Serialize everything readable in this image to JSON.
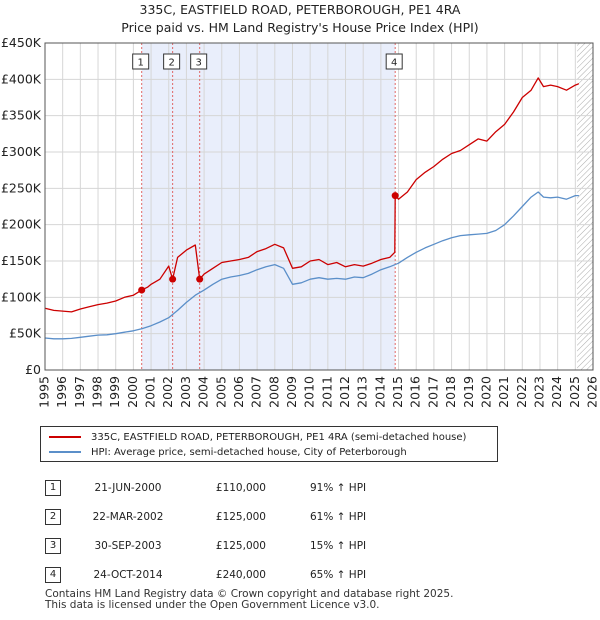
{
  "title": "335C, EASTFIELD ROAD, PETERBOROUGH, PE1 4RA",
  "subtitle": "Price paid vs. HM Land Registry's House Price Index (HPI)",
  "colors": {
    "property": "#cc0000",
    "hpi": "#5b8fc9",
    "shade": "#e9eefb",
    "marker_line": "#e06666",
    "grid": "#d6d6d6",
    "hatch": "#aaaaaa"
  },
  "chart_data": {
    "type": "line",
    "title": "335C, EASTFIELD ROAD, PETERBOROUGH, PE1 4RA",
    "subtitle": "Price paid vs. HM Land Registry's House Price Index (HPI)",
    "xlabel": "",
    "ylabel": "",
    "xlim": [
      1995,
      2026
    ],
    "ylim": [
      0,
      450000
    ],
    "grid": true,
    "x_ticks": [
      "1995",
      "1996",
      "1997",
      "1998",
      "1999",
      "2000",
      "2001",
      "2002",
      "2003",
      "2004",
      "2005",
      "2006",
      "2007",
      "2008",
      "2009",
      "2010",
      "2011",
      "2012",
      "2013",
      "2014",
      "2015",
      "2016",
      "2017",
      "2018",
      "2019",
      "2020",
      "2021",
      "2022",
      "2023",
      "2024",
      "2025",
      "2026"
    ],
    "y_ticks": [
      {
        "value": 0,
        "label": "£0"
      },
      {
        "value": 50000,
        "label": "£50K"
      },
      {
        "value": 100000,
        "label": "£100K"
      },
      {
        "value": 150000,
        "label": "£150K"
      },
      {
        "value": 200000,
        "label": "£200K"
      },
      {
        "value": 250000,
        "label": "£250K"
      },
      {
        "value": 300000,
        "label": "£300K"
      },
      {
        "value": 350000,
        "label": "£350K"
      },
      {
        "value": 400000,
        "label": "£400K"
      },
      {
        "value": 450000,
        "label": "£450K"
      }
    ],
    "shaded_range": [
      2000.47,
      2014.81
    ],
    "hatched_from": 2025.1,
    "series": [
      {
        "name": "335C, EASTFIELD ROAD, PETERBOROUGH, PE1 4RA (semi-detached house)",
        "key": "property",
        "x": [
          1995.0,
          1995.5,
          1996.0,
          1996.5,
          1997.0,
          1997.5,
          1998.0,
          1998.5,
          1999.0,
          1999.5,
          2000.0,
          2000.47,
          2000.8,
          2001.0,
          2001.5,
          2002.0,
          2002.22,
          2002.5,
          2003.0,
          2003.5,
          2003.75,
          2004.0,
          2004.5,
          2005.0,
          2005.5,
          2006.0,
          2006.5,
          2007.0,
          2007.5,
          2008.0,
          2008.5,
          2009.0,
          2009.5,
          2010.0,
          2010.5,
          2011.0,
          2011.5,
          2012.0,
          2012.5,
          2013.0,
          2013.5,
          2014.0,
          2014.5,
          2014.79,
          2014.81,
          2015.0,
          2015.5,
          2016.0,
          2016.5,
          2017.0,
          2017.5,
          2018.0,
          2018.5,
          2019.0,
          2019.5,
          2020.0,
          2020.5,
          2021.0,
          2021.5,
          2022.0,
          2022.5,
          2022.9,
          2023.2,
          2023.6,
          2024.0,
          2024.5,
          2025.0,
          2025.2
        ],
        "y": [
          85000,
          82000,
          81000,
          80000,
          84000,
          87000,
          90000,
          92000,
          95000,
          100000,
          103000,
          110000,
          114000,
          118000,
          125000,
          143000,
          125000,
          155000,
          165000,
          172000,
          125000,
          132000,
          140000,
          148000,
          150000,
          152000,
          155000,
          163000,
          167000,
          173000,
          168000,
          140000,
          142000,
          150000,
          152000,
          145000,
          148000,
          142000,
          145000,
          143000,
          147000,
          152000,
          155000,
          162000,
          240000,
          235000,
          245000,
          262000,
          272000,
          280000,
          290000,
          298000,
          302000,
          310000,
          318000,
          315000,
          328000,
          338000,
          355000,
          375000,
          385000,
          402000,
          390000,
          392000,
          390000,
          385000,
          392000,
          394000
        ]
      },
      {
        "name": "HPI: Average price, semi-detached house, City of Peterborough",
        "key": "hpi",
        "x": [
          1995.0,
          1995.5,
          1996.0,
          1996.5,
          1997.0,
          1997.5,
          1998.0,
          1998.5,
          1999.0,
          1999.5,
          2000.0,
          2000.5,
          2001.0,
          2001.5,
          2002.0,
          2002.5,
          2003.0,
          2003.5,
          2004.0,
          2004.5,
          2005.0,
          2005.5,
          2006.0,
          2006.5,
          2007.0,
          2007.5,
          2008.0,
          2008.5,
          2009.0,
          2009.5,
          2010.0,
          2010.5,
          2011.0,
          2011.5,
          2012.0,
          2012.5,
          2013.0,
          2013.5,
          2014.0,
          2014.5,
          2015.0,
          2015.5,
          2016.0,
          2016.5,
          2017.0,
          2017.5,
          2018.0,
          2018.5,
          2019.0,
          2019.5,
          2020.0,
          2020.5,
          2021.0,
          2021.5,
          2022.0,
          2022.5,
          2022.9,
          2023.2,
          2023.6,
          2024.0,
          2024.5,
          2025.0,
          2025.2
        ],
        "y": [
          44000,
          43000,
          43000,
          43500,
          45000,
          46500,
          48000,
          48500,
          50000,
          52000,
          54000,
          57000,
          61000,
          66000,
          72000,
          82000,
          93000,
          103000,
          110000,
          118000,
          125000,
          128000,
          130000,
          133000,
          138000,
          142000,
          145000,
          140000,
          118000,
          120000,
          125000,
          127000,
          125000,
          126000,
          125000,
          128000,
          127000,
          132000,
          138000,
          142000,
          147000,
          155000,
          162000,
          168000,
          173000,
          178000,
          182000,
          185000,
          186000,
          187000,
          188000,
          192000,
          200000,
          212000,
          225000,
          238000,
          245000,
          238000,
          237000,
          238000,
          235000,
          240000,
          240000
        ]
      }
    ],
    "sales": [
      {
        "id": "1",
        "x": 2000.47,
        "price": 110000,
        "date": "21-JUN-2000",
        "price_label": "£110,000",
        "hpi": "91% ↑ HPI"
      },
      {
        "id": "2",
        "x": 2002.22,
        "price": 125000,
        "date": "22-MAR-2002",
        "price_label": "£125,000",
        "hpi": "61% ↑ HPI"
      },
      {
        "id": "3",
        "x": 2003.75,
        "price": 125000,
        "date": "30-SEP-2003",
        "price_label": "£125,000",
        "hpi": "15% ↑ HPI"
      },
      {
        "id": "4",
        "x": 2014.81,
        "price": 240000,
        "date": "24-OCT-2014",
        "price_label": "£240,000",
        "hpi": "65% ↑ HPI"
      }
    ]
  },
  "legend": {
    "property_label": "335C, EASTFIELD ROAD, PETERBOROUGH, PE1 4RA (semi-detached house)",
    "hpi_label": "HPI: Average price, semi-detached house, City of Peterborough"
  },
  "footer": {
    "line1": "Contains HM Land Registry data © Crown copyright and database right 2025.",
    "line2": "This data is licensed under the Open Government Licence v3.0."
  }
}
